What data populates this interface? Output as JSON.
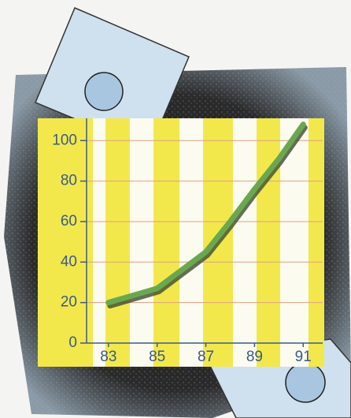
{
  "chart_data": {
    "type": "line",
    "x": [
      83,
      85,
      87,
      88,
      89,
      90,
      91
    ],
    "values": [
      20,
      27,
      45,
      60,
      76,
      91,
      108
    ],
    "color": "#6aa84f",
    "xlim": [
      82.1,
      91.8
    ],
    "ylim": [
      0,
      111
    ],
    "xticks": [
      83,
      85,
      87,
      89,
      91
    ],
    "yticks": [
      0,
      20,
      40,
      60,
      80,
      100
    ],
    "grid": true
  }
}
